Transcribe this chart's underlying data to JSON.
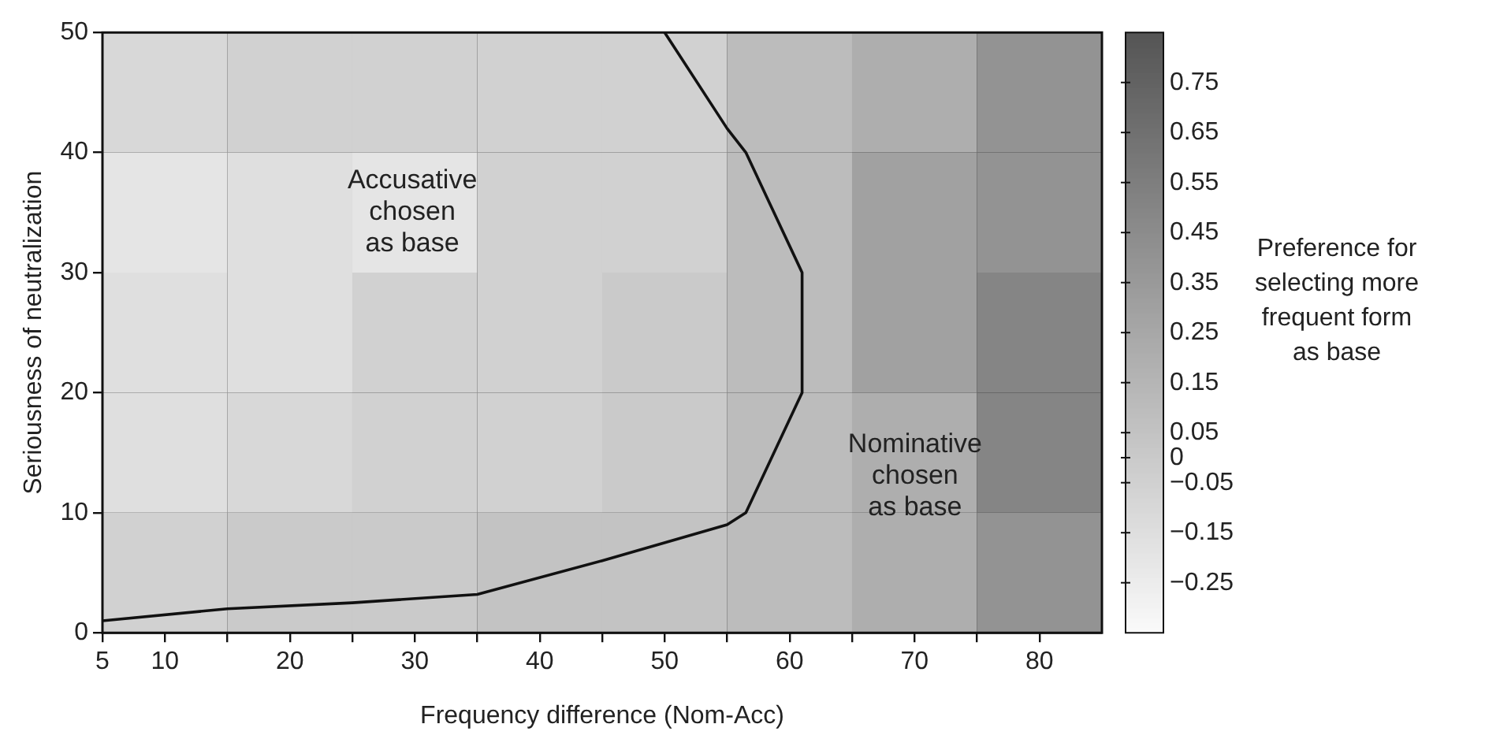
{
  "chart_data": {
    "type": "heatmap",
    "xlabel": "Frequency difference (Nom-Acc)",
    "ylabel": "Seriousness of neutralization",
    "clabel": "Preference for\nselecting more\nfrequent form\nas base",
    "x": [
      10,
      20,
      30,
      40,
      50,
      60,
      70,
      80
    ],
    "cells": [
      [
        -0.1,
        -0.05,
        -0.05,
        -0.05,
        -0.05,
        0.1,
        0.2,
        0.4
      ],
      [
        -0.2,
        -0.15,
        -0.2,
        -0.05,
        -0.05,
        0.1,
        0.3,
        0.4
      ],
      [
        -0.15,
        -0.15,
        -0.05,
        -0.05,
        0,
        0.1,
        0.3,
        0.5
      ],
      [
        -0.15,
        -0.1,
        -0.05,
        -0.05,
        0,
        0.1,
        0.2,
        0.5
      ],
      [
        -0.05,
        0,
        0,
        0.05,
        0.05,
        0.1,
        0.2,
        0.4
      ]
    ],
    "clim": [
      -0.35,
      0.85
    ],
    "cticks": [
      {
        "value": -0.25,
        "label": "−0.25"
      },
      {
        "value": -0.15,
        "label": "−0.15"
      },
      {
        "value": -0.05,
        "label": "−0.05"
      },
      0,
      0.05,
      0.15,
      0.25,
      0.35,
      0.45,
      0.55,
      0.65,
      0.75
    ],
    "series": [
      {
        "type": "line",
        "color": "#111111",
        "x": [
          5,
          15,
          25,
          35,
          45,
          55,
          56.5,
          61,
          61,
          56.5,
          55,
          50
        ],
        "values": [
          1,
          2,
          2.5,
          3.2,
          6,
          9,
          10,
          20,
          30,
          40,
          42,
          50
        ]
      }
    ],
    "annotations": [
      "Accusative\nchosen\nas base",
      "Nominative\nchosen\nas base"
    ],
    "xlim": [
      5,
      85
    ],
    "ylim": [
      0,
      50
    ],
    "xticks": [
      5,
      10,
      {
        "value": 15,
        "label": null
      },
      20,
      {
        "value": 25,
        "label": null
      },
      30,
      {
        "value": 35,
        "label": null
      },
      40,
      {
        "value": 45,
        "label": null
      },
      50,
      {
        "value": 55,
        "label": null
      },
      60,
      {
        "value": 65,
        "label": null
      },
      70,
      {
        "value": 75,
        "label": null
      },
      80
    ],
    "yticks": [
      0,
      10,
      20,
      30,
      40,
      50
    ],
    "grid": true,
    "marker": "none"
  }
}
